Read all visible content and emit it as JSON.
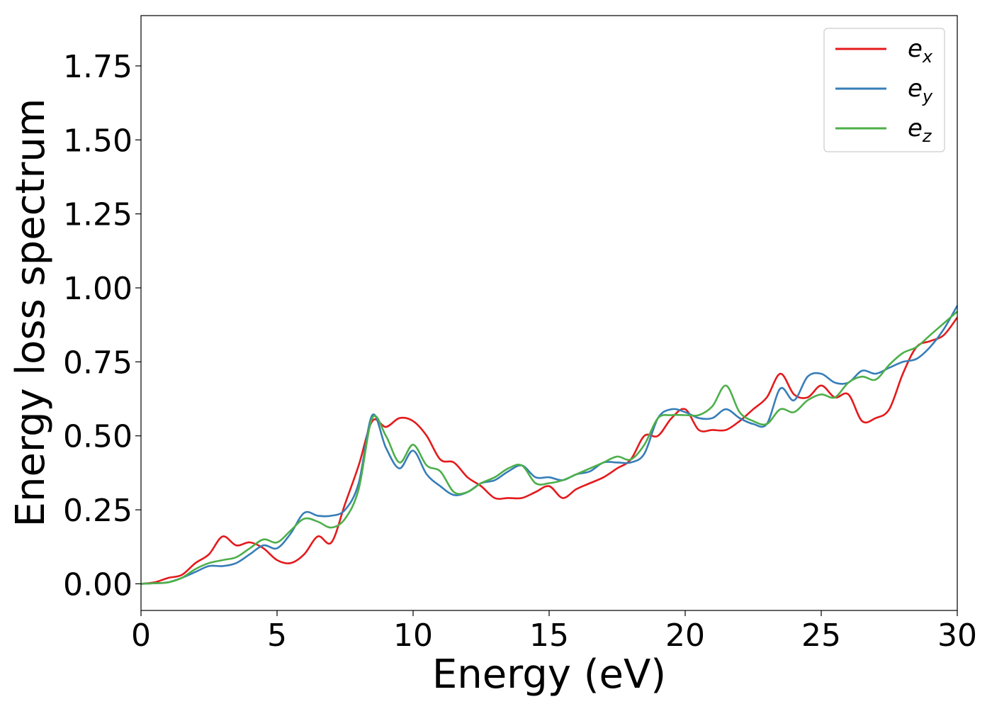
{
  "chart_data": {
    "type": "line",
    "title": "",
    "xlabel": "Energy (eV)",
    "ylabel": "Energy loss spectrum",
    "xlim": [
      0,
      30
    ],
    "ylim": [
      -0.09,
      1.92
    ],
    "xticks": [
      0,
      5,
      10,
      15,
      20,
      25,
      30
    ],
    "yticks": [
      0.0,
      0.25,
      0.5,
      0.75,
      1.0,
      1.25,
      1.5,
      1.75
    ],
    "xtick_labels": [
      "0",
      "5",
      "10",
      "15",
      "20",
      "25",
      "30"
    ],
    "ytick_labels": [
      "0.00",
      "0.25",
      "0.50",
      "0.75",
      "1.00",
      "1.25",
      "1.50",
      "1.75"
    ],
    "grid": false,
    "legend_position": "top-right",
    "x": [
      0,
      0.5,
      1,
      1.5,
      2,
      2.5,
      3,
      3.5,
      4,
      4.5,
      5,
      5.5,
      6,
      6.5,
      7,
      7.5,
      8,
      8.5,
      9,
      9.5,
      10,
      10.5,
      11,
      11.5,
      12,
      12.5,
      13,
      13.5,
      14,
      14.5,
      15,
      15.5,
      16,
      16.5,
      17,
      17.5,
      18,
      18.5,
      19,
      19.5,
      20,
      20.5,
      21,
      21.5,
      22,
      22.5,
      23,
      23.5,
      24,
      24.5,
      25,
      25.5,
      26,
      26.5,
      27,
      27.5,
      28,
      28.5,
      29,
      29.5,
      30
    ],
    "series": [
      {
        "name": "e_x",
        "label_base": "e",
        "label_sub": "x",
        "color": "#e41a1c",
        "values": [
          0.0,
          0.005,
          0.02,
          0.03,
          0.07,
          0.1,
          0.16,
          0.13,
          0.14,
          0.12,
          0.08,
          0.07,
          0.1,
          0.16,
          0.14,
          0.27,
          0.4,
          0.55,
          0.53,
          0.56,
          0.55,
          0.5,
          0.42,
          0.41,
          0.36,
          0.33,
          0.29,
          0.29,
          0.29,
          0.31,
          0.33,
          0.29,
          0.32,
          0.34,
          0.36,
          0.39,
          0.42,
          0.5,
          0.5,
          0.56,
          0.59,
          0.52,
          0.52,
          0.52,
          0.55,
          0.59,
          0.63,
          0.71,
          0.64,
          0.63,
          0.67,
          0.63,
          0.64,
          0.55,
          0.56,
          0.59,
          0.71,
          0.8,
          0.82,
          0.84,
          0.9
        ]
      },
      {
        "name": "e_y",
        "label_base": "e",
        "label_sub": "y",
        "color": "#377eb8",
        "values": [
          0.0,
          0.002,
          0.005,
          0.02,
          0.04,
          0.06,
          0.06,
          0.07,
          0.1,
          0.13,
          0.12,
          0.17,
          0.24,
          0.23,
          0.23,
          0.25,
          0.34,
          0.57,
          0.46,
          0.39,
          0.45,
          0.37,
          0.33,
          0.3,
          0.31,
          0.34,
          0.35,
          0.38,
          0.4,
          0.36,
          0.36,
          0.35,
          0.37,
          0.38,
          0.41,
          0.41,
          0.41,
          0.44,
          0.56,
          0.59,
          0.58,
          0.56,
          0.56,
          0.59,
          0.56,
          0.54,
          0.54,
          0.66,
          0.62,
          0.7,
          0.71,
          0.68,
          0.68,
          0.72,
          0.71,
          0.73,
          0.75,
          0.76,
          0.8,
          0.86,
          0.94
        ]
      },
      {
        "name": "e_z",
        "label_base": "e",
        "label_sub": "z",
        "color": "#4daf4a",
        "values": [
          0.0,
          0.002,
          0.005,
          0.02,
          0.05,
          0.07,
          0.08,
          0.09,
          0.12,
          0.15,
          0.14,
          0.18,
          0.22,
          0.21,
          0.19,
          0.22,
          0.32,
          0.56,
          0.5,
          0.41,
          0.47,
          0.4,
          0.38,
          0.31,
          0.31,
          0.34,
          0.36,
          0.39,
          0.4,
          0.34,
          0.34,
          0.35,
          0.37,
          0.39,
          0.41,
          0.43,
          0.42,
          0.47,
          0.56,
          0.57,
          0.57,
          0.57,
          0.6,
          0.67,
          0.58,
          0.55,
          0.54,
          0.59,
          0.58,
          0.62,
          0.64,
          0.63,
          0.68,
          0.7,
          0.69,
          0.74,
          0.78,
          0.8,
          0.84,
          0.88,
          0.92
        ]
      }
    ]
  }
}
